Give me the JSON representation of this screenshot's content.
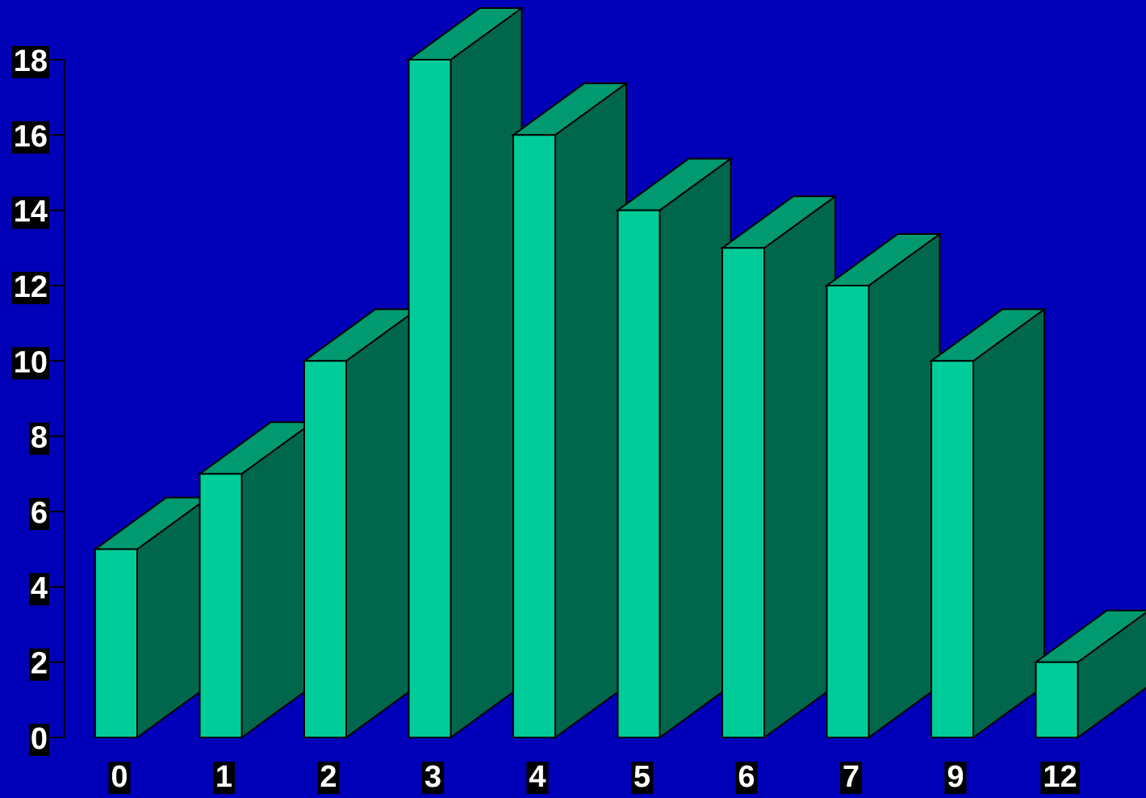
{
  "chart_data": {
    "type": "bar",
    "categories": [
      "0",
      "1",
      "2",
      "3",
      "4",
      "5",
      "6",
      "7",
      "9",
      "12"
    ],
    "values": [
      5,
      7,
      10,
      18,
      16,
      14,
      13,
      12,
      10,
      2
    ],
    "yticks": [
      "0",
      "2",
      "4",
      "6",
      "8",
      "10",
      "12",
      "14",
      "16",
      "18"
    ],
    "ylim": [
      0,
      18
    ],
    "style": "3d",
    "colors": {
      "background": "#0000b8",
      "bar_front": "#00cc99",
      "bar_top": "#009970",
      "bar_side": "#00664c",
      "axis": "#000000",
      "label_box": "#000000",
      "label_text": "#ffffff"
    }
  }
}
